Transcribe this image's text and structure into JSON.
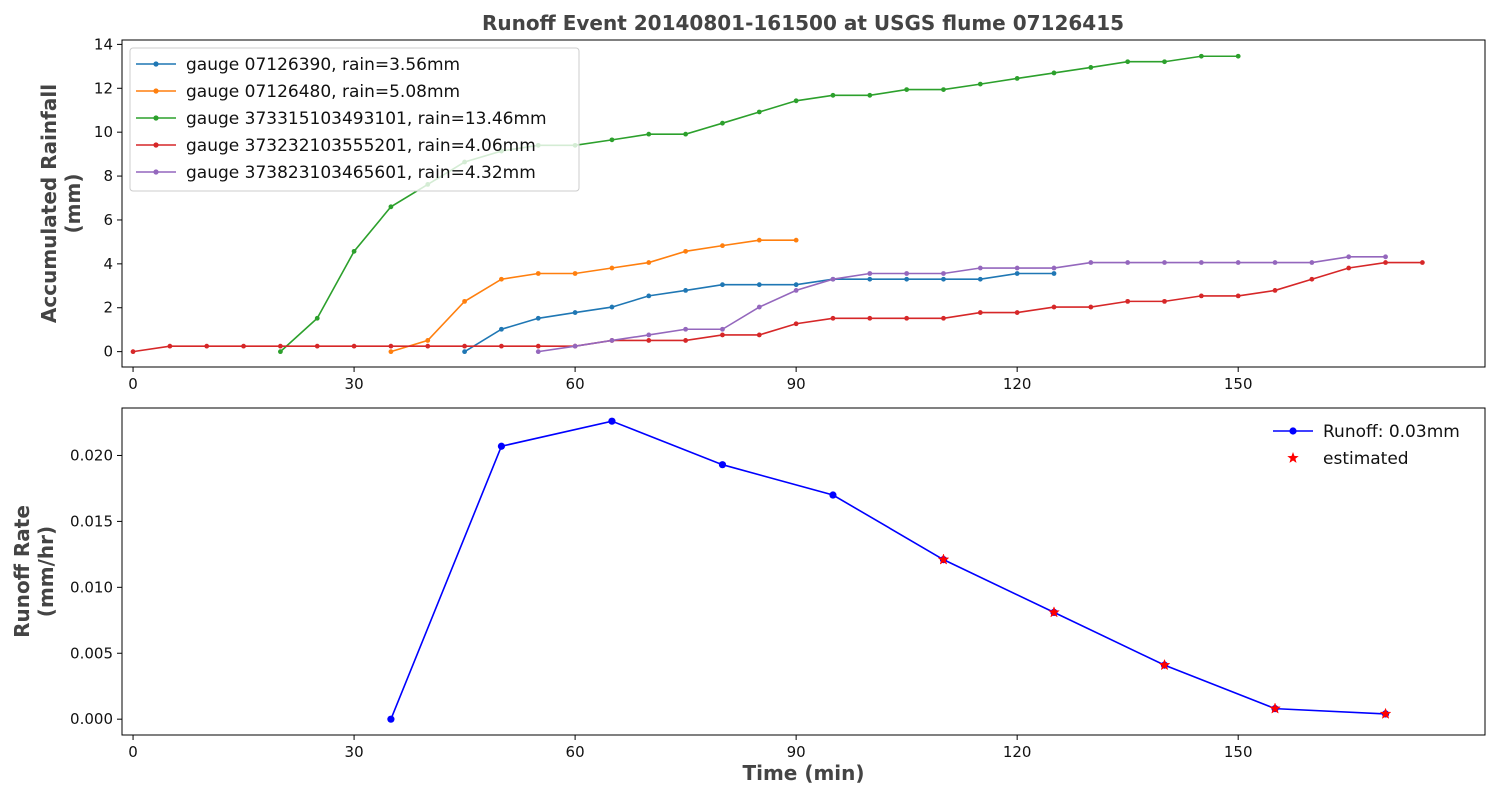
{
  "figure": {
    "title": "Runoff Event 20140801-161500 at USGS flume 07126415"
  },
  "chart_data": [
    {
      "type": "line",
      "title": "Runoff Event 20140801-161500 at USGS flume 07126415",
      "xlabel": "",
      "ylabel": [
        "Accumulated Rainfall",
        "(mm)"
      ],
      "xlim": [
        -1.5,
        183.5
      ],
      "ylim": [
        -0.7,
        14.2
      ],
      "xticks": [
        0,
        30,
        60,
        90,
        120,
        150
      ],
      "yticks": [
        0,
        2,
        4,
        6,
        8,
        10,
        12,
        14
      ],
      "grid": false,
      "legend": "top-left",
      "series": [
        {
          "name": "gauge 07126390, rain=3.56mm",
          "color": "#1f77b4",
          "x": [
            45,
            50,
            55,
            60,
            65,
            70,
            75,
            80,
            85,
            90,
            95,
            100,
            105,
            110,
            115,
            120,
            125
          ],
          "y": [
            0,
            1.02,
            1.52,
            1.78,
            2.03,
            2.54,
            2.79,
            3.05,
            3.05,
            3.05,
            3.3,
            3.3,
            3.3,
            3.3,
            3.3,
            3.56,
            3.56
          ]
        },
        {
          "name": "gauge 07126480, rain=5.08mm",
          "color": "#ff7f0e",
          "x": [
            35,
            40,
            45,
            50,
            55,
            60,
            65,
            70,
            75,
            80,
            85,
            90
          ],
          "y": [
            0,
            0.51,
            2.29,
            3.3,
            3.56,
            3.56,
            3.81,
            4.06,
            4.57,
            4.83,
            5.08,
            5.08
          ]
        },
        {
          "name": "gauge 373315103493101, rain=13.46mm",
          "color": "#2ca02c",
          "x": [
            20,
            25,
            30,
            35,
            40,
            45,
            50,
            55,
            60,
            65,
            70,
            75,
            80,
            85,
            90,
            95,
            100,
            105,
            110,
            115,
            120,
            125,
            130,
            135,
            140,
            145,
            150
          ],
          "y": [
            0,
            1.52,
            4.57,
            6.6,
            7.62,
            8.64,
            9.14,
            9.4,
            9.4,
            9.65,
            9.91,
            9.91,
            10.41,
            10.92,
            11.43,
            11.68,
            11.68,
            11.94,
            11.94,
            12.19,
            12.45,
            12.7,
            12.95,
            13.21,
            13.21,
            13.46,
            13.46
          ]
        },
        {
          "name": "gauge 373232103555201, rain=4.06mm",
          "color": "#d62728",
          "x": [
            0,
            5,
            10,
            15,
            20,
            25,
            30,
            35,
            40,
            45,
            50,
            55,
            60,
            65,
            70,
            75,
            80,
            85,
            90,
            95,
            100,
            105,
            110,
            115,
            120,
            125,
            130,
            135,
            140,
            145,
            150,
            155,
            160,
            165,
            170,
            175
          ],
          "y": [
            0,
            0.25,
            0.25,
            0.25,
            0.25,
            0.25,
            0.25,
            0.25,
            0.25,
            0.25,
            0.25,
            0.25,
            0.25,
            0.51,
            0.51,
            0.51,
            0.76,
            0.76,
            1.27,
            1.52,
            1.52,
            1.52,
            1.52,
            1.78,
            1.78,
            2.03,
            2.03,
            2.29,
            2.29,
            2.54,
            2.54,
            2.79,
            3.3,
            3.81,
            4.06,
            4.06
          ]
        },
        {
          "name": "gauge 373823103465601, rain=4.32mm",
          "color": "#9467bd",
          "x": [
            55,
            60,
            65,
            70,
            75,
            80,
            85,
            90,
            95,
            100,
            105,
            110,
            115,
            120,
            125,
            130,
            135,
            140,
            145,
            150,
            155,
            160,
            165,
            170
          ],
          "y": [
            0,
            0.25,
            0.51,
            0.76,
            1.02,
            1.02,
            2.03,
            2.79,
            3.3,
            3.56,
            3.56,
            3.56,
            3.81,
            3.81,
            3.81,
            4.06,
            4.06,
            4.06,
            4.06,
            4.06,
            4.06,
            4.06,
            4.32,
            4.32
          ]
        }
      ]
    },
    {
      "type": "line",
      "title": "",
      "xlabel": "Time (min)",
      "ylabel": [
        "Runoff Rate",
        "(mm/hr)"
      ],
      "xlim": [
        -1.5,
        183.5
      ],
      "ylim": [
        -0.0012,
        0.0236
      ],
      "xticks": [
        0,
        30,
        60,
        90,
        120,
        150
      ],
      "yticks": [
        0.0,
        0.005,
        0.01,
        0.015,
        0.02
      ],
      "ytick_labels": [
        "0.000",
        "0.005",
        "0.010",
        "0.015",
        "0.020"
      ],
      "grid": false,
      "legend": "top-right",
      "series": [
        {
          "name": "Runoff: 0.03mm",
          "color": "#0000ff",
          "marker": "circle",
          "x": [
            35,
            50,
            65,
            80,
            95,
            110,
            125,
            140,
            155,
            170
          ],
          "y": [
            0.0,
            0.0207,
            0.0226,
            0.0193,
            0.017,
            0.0121,
            0.0081,
            0.0041,
            0.0008,
            0.0004
          ]
        },
        {
          "name": "estimated",
          "color": "#ff0000",
          "marker": "star",
          "x": [
            110,
            125,
            140,
            155,
            170
          ],
          "y": [
            0.0121,
            0.0081,
            0.0041,
            0.0008,
            0.0004
          ]
        }
      ]
    }
  ]
}
